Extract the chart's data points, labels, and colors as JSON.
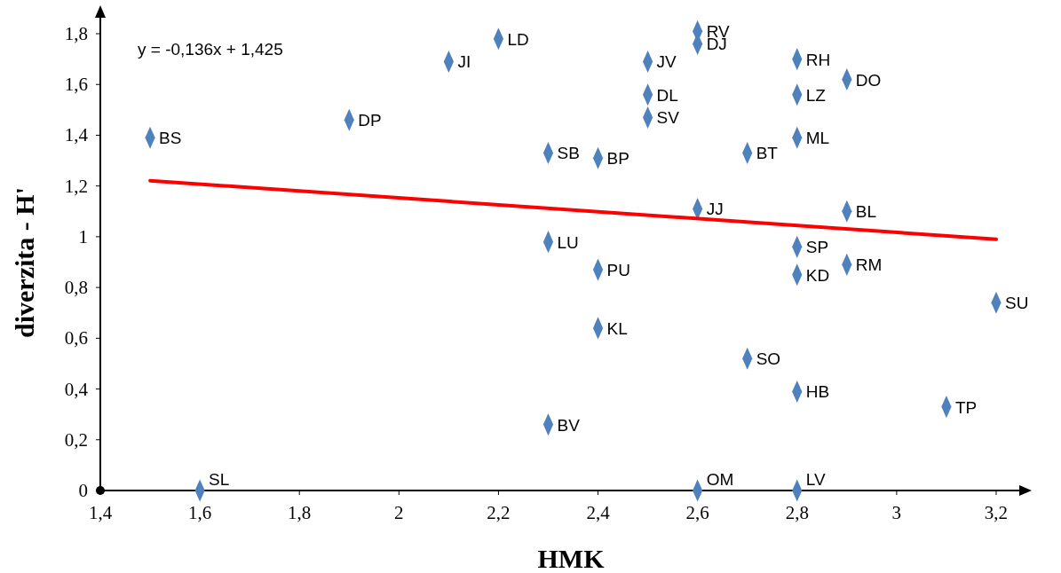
{
  "chart_data": {
    "type": "scatter",
    "xlabel": "HMK",
    "ylabel": "diverzita - H'",
    "xlim": [
      1.4,
      3.25
    ],
    "ylim": [
      0,
      1.87
    ],
    "xticks": [
      {
        "value": 1.4,
        "label": "1,4"
      },
      {
        "value": 1.6,
        "label": "1,6"
      },
      {
        "value": 1.8,
        "label": "1,8"
      },
      {
        "value": 2,
        "label": "2"
      },
      {
        "value": 2.2,
        "label": "2,2"
      },
      {
        "value": 2.4,
        "label": "2,4"
      },
      {
        "value": 2.6,
        "label": "2,6"
      },
      {
        "value": 2.8,
        "label": "2,8"
      },
      {
        "value": 3,
        "label": "3"
      },
      {
        "value": 3.2,
        "label": "3,2"
      }
    ],
    "yticks": [
      {
        "value": 0,
        "label": "0"
      },
      {
        "value": 0.2,
        "label": "0,2"
      },
      {
        "value": 0.4,
        "label": "0,4"
      },
      {
        "value": 0.6,
        "label": "0,6"
      },
      {
        "value": 0.8,
        "label": "0,8"
      },
      {
        "value": 1,
        "label": "1"
      },
      {
        "value": 1.2,
        "label": "1,2"
      },
      {
        "value": 1.4,
        "label": "1,4"
      },
      {
        "value": 1.6,
        "label": "1,6"
      },
      {
        "value": 1.8,
        "label": "1,8"
      }
    ],
    "grid": false,
    "marker": "diamond",
    "series": [
      {
        "type": "scatter",
        "color": "#4f81bd",
        "x": [
          1.5,
          1.6,
          1.9,
          2.1,
          2.2,
          2.3,
          2.3,
          2.3,
          2.4,
          2.4,
          2.4,
          2.5,
          2.5,
          2.5,
          2.6,
          2.6,
          2.6,
          2.6,
          2.7,
          2.7,
          2.8,
          2.8,
          2.8,
          2.8,
          2.8,
          2.8,
          2.8,
          2.9,
          2.9,
          2.9,
          3.1,
          3.2
        ],
        "values": [
          1.39,
          0,
          1.46,
          1.69,
          1.78,
          1.33,
          0.98,
          0.26,
          1.31,
          0.87,
          0.64,
          1.69,
          1.56,
          1.47,
          1.81,
          1.76,
          1.11,
          0,
          1.33,
          0.52,
          1.7,
          1.56,
          1.39,
          0.96,
          0.85,
          0.39,
          0,
          1.62,
          1.1,
          0.89,
          0.33,
          0.74
        ]
      },
      {
        "type": "line",
        "color": "#ff0000",
        "line_style": "solid",
        "marker": "none",
        "x": [
          1.5,
          3.2
        ],
        "values": [
          1.221,
          0.99
        ]
      }
    ],
    "annotations": [
      "y = -0,136x + 1,425",
      {
        "text": "BS",
        "x": 1.5,
        "y": 1.39
      },
      {
        "text": "SL",
        "x": 1.6,
        "y": 0
      },
      {
        "text": "DP",
        "x": 1.9,
        "y": 1.46
      },
      {
        "text": "JI",
        "x": 2.1,
        "y": 1.69
      },
      {
        "text": "LD",
        "x": 2.2,
        "y": 1.78
      },
      {
        "text": "SB",
        "x": 2.3,
        "y": 1.33
      },
      {
        "text": "LU",
        "x": 2.3,
        "y": 0.98
      },
      {
        "text": "BV",
        "x": 2.3,
        "y": 0.26
      },
      {
        "text": "BP",
        "x": 2.4,
        "y": 1.31
      },
      {
        "text": "PU",
        "x": 2.4,
        "y": 0.87
      },
      {
        "text": "KL",
        "x": 2.4,
        "y": 0.64
      },
      {
        "text": "JV",
        "x": 2.5,
        "y": 1.69
      },
      {
        "text": "DL",
        "x": 2.5,
        "y": 1.56
      },
      {
        "text": "SV",
        "x": 2.5,
        "y": 1.47
      },
      {
        "text": "RV",
        "x": 2.6,
        "y": 1.81
      },
      {
        "text": "DJ",
        "x": 2.6,
        "y": 1.76
      },
      {
        "text": "JJ",
        "x": 2.6,
        "y": 1.11
      },
      {
        "text": "OM",
        "x": 2.6,
        "y": 0
      },
      {
        "text": "BT",
        "x": 2.7,
        "y": 1.33
      },
      {
        "text": "SO",
        "x": 2.7,
        "y": 0.52
      },
      {
        "text": "RH",
        "x": 2.8,
        "y": 1.7
      },
      {
        "text": "LZ",
        "x": 2.8,
        "y": 1.56
      },
      {
        "text": "ML",
        "x": 2.8,
        "y": 1.39
      },
      {
        "text": "SP",
        "x": 2.8,
        "y": 0.96
      },
      {
        "text": "KD",
        "x": 2.8,
        "y": 0.85
      },
      {
        "text": "HB",
        "x": 2.8,
        "y": 0.39
      },
      {
        "text": "LV",
        "x": 2.8,
        "y": 0
      },
      {
        "text": "DO",
        "x": 2.9,
        "y": 1.62
      },
      {
        "text": "BL",
        "x": 2.9,
        "y": 1.1
      },
      {
        "text": "RM",
        "x": 2.9,
        "y": 0.89
      },
      {
        "text": "TP",
        "x": 3.1,
        "y": 0.33
      },
      {
        "text": "SU",
        "x": 3.2,
        "y": 0.74
      }
    ]
  }
}
